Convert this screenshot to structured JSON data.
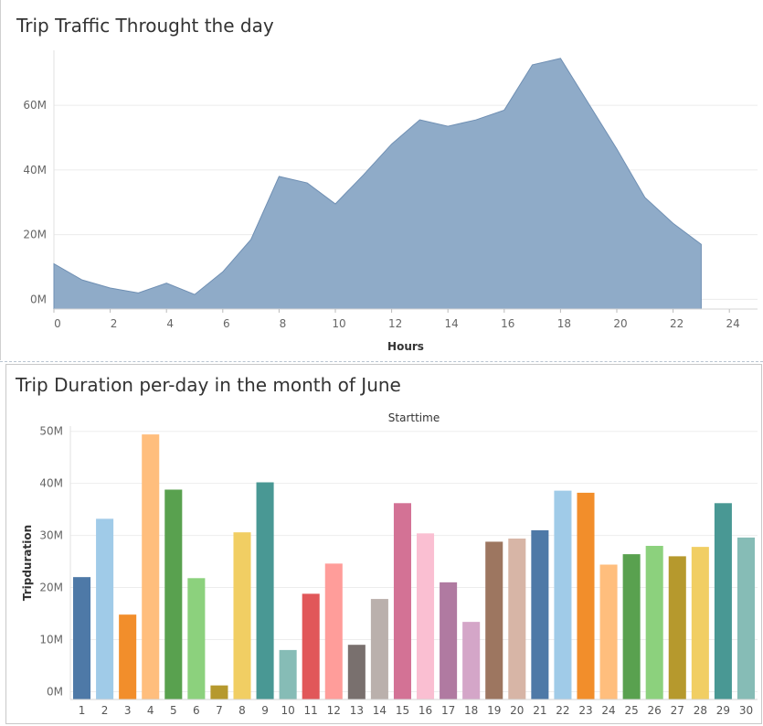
{
  "chart_data": [
    {
      "type": "area",
      "title": "Trip Traffic Throught the day",
      "xlabel": "Hours",
      "ylabel": "",
      "x": [
        0,
        1,
        2,
        3,
        4,
        5,
        6,
        7,
        8,
        9,
        10,
        11,
        12,
        13,
        14,
        15,
        16,
        17,
        18,
        19,
        20,
        21,
        22,
        23
      ],
      "values": [
        11,
        6,
        3.5,
        2,
        5,
        1.5,
        8.5,
        18.5,
        38,
        36,
        29.5,
        38.5,
        48,
        55.5,
        53.5,
        55.5,
        58.5,
        72.5,
        74.5,
        60.5,
        46.5,
        31.5,
        23.5,
        17
      ],
      "value_unit": "M",
      "xlim": [
        0,
        25
      ],
      "ylim": [
        -3,
        77
      ],
      "xticks": [
        0,
        2,
        4,
        6,
        8,
        10,
        12,
        14,
        16,
        18,
        20,
        22,
        24
      ],
      "yticks": [
        0,
        20,
        40,
        60
      ],
      "ytick_labels": [
        "0M",
        "20M",
        "40M",
        "60M"
      ],
      "color": "#8fabc8",
      "grid": true
    },
    {
      "type": "bar",
      "title": "Trip Duration per-day in the month of June",
      "header": "Starttime",
      "xlabel": "",
      "ylabel": "Tripduration",
      "categories": [
        "1",
        "2",
        "3",
        "4",
        "5",
        "6",
        "7",
        "8",
        "9",
        "10",
        "11",
        "12",
        "13",
        "14",
        "15",
        "16",
        "17",
        "18",
        "19",
        "20",
        "21",
        "22",
        "23",
        "24",
        "25",
        "26",
        "27",
        "28",
        "29",
        "30"
      ],
      "values": [
        22,
        33.2,
        14.8,
        49.4,
        38.8,
        21.8,
        1.2,
        30.6,
        40.2,
        8,
        18.8,
        24.6,
        9,
        17.8,
        36.2,
        30.4,
        21,
        13.4,
        28.8,
        29.4,
        31,
        38.6,
        38.2,
        24.4,
        26.4,
        28,
        26,
        27.8,
        36.2,
        29.6
      ],
      "value_unit": "M",
      "ylim": [
        -1.5,
        51
      ],
      "yticks": [
        0,
        10,
        20,
        30,
        40,
        50
      ],
      "ytick_labels": [
        "0M",
        "10M",
        "20M",
        "30M",
        "40M",
        "50M"
      ],
      "colors": [
        "#4e79a7",
        "#a0cbe8",
        "#f28e2b",
        "#ffbe7d",
        "#59a14f",
        "#8cd17d",
        "#b6992d",
        "#f1ce63",
        "#499894",
        "#86bcb6",
        "#e15759",
        "#ff9d9a",
        "#79706e",
        "#bab0ac",
        "#d37295",
        "#fabfd2",
        "#b07aa1",
        "#d4a6c8",
        "#9d7660",
        "#d7b5a6",
        "#4e79a7",
        "#a0cbe8",
        "#f28e2b",
        "#ffbe7d",
        "#59a14f",
        "#8cd17d",
        "#b6992d",
        "#f1ce63",
        "#499894",
        "#86bcb6"
      ],
      "grid": true
    }
  ]
}
